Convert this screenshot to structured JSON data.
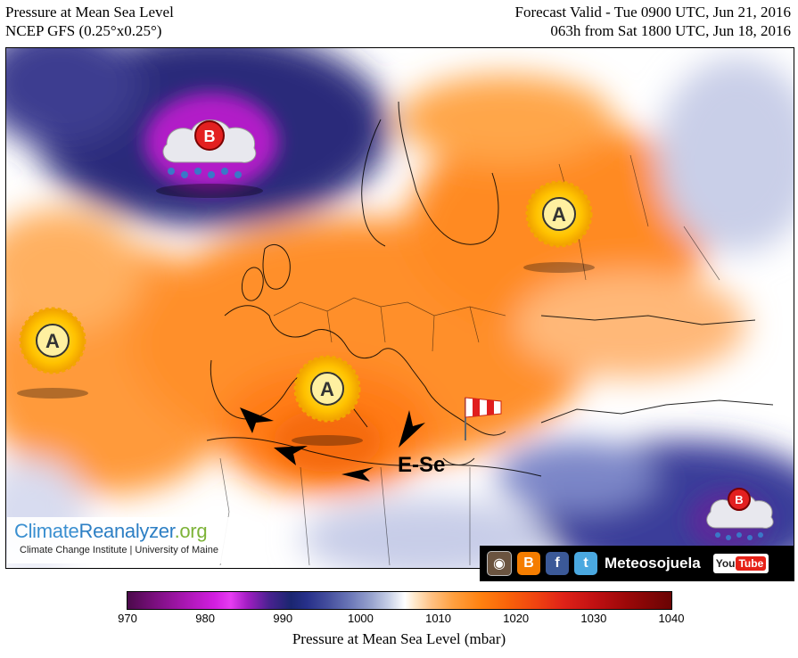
{
  "header": {
    "title": "Pressure at Mean Sea Level",
    "model": "NCEP GFS (0.25°x0.25°)",
    "valid": "Forecast Valid - Tue 0900 UTC, Jun 21, 2016",
    "lead": "063h from Sat 1800 UTC, Jun 18, 2016"
  },
  "map": {
    "pressure_systems": [
      {
        "label": "B",
        "type": "low",
        "location": "north-atlantic-iceland"
      },
      {
        "label": "A",
        "type": "high",
        "location": "western-russia"
      },
      {
        "label": "A",
        "type": "high",
        "location": "atlantic-azores"
      },
      {
        "label": "A",
        "type": "high",
        "location": "western-mediterranean"
      },
      {
        "label": "B",
        "type": "low",
        "location": "middle-east"
      }
    ],
    "wind_annotation": "E-Se",
    "colors": {
      "low": "#7a0f9a",
      "high": "#ff8a1c",
      "neutral": "#ffffff"
    }
  },
  "credit": {
    "title_part1": "Climate",
    "title_part2": "Reanalyzer",
    "title_part3": ".org",
    "subtitle": "Climate Change Institute | University of Maine"
  },
  "social": {
    "icons": [
      "instagram-icon",
      "blogger-icon",
      "facebook-icon",
      "twitter-icon"
    ],
    "name": "Meteosojuela",
    "yt_you": "You",
    "yt_tube": "Tube"
  },
  "colorbar": {
    "ticks": [
      "970",
      "980",
      "990",
      "1000",
      "1010",
      "1020",
      "1030",
      "1040"
    ],
    "label": "Pressure at Mean Sea Level (mbar)",
    "min": 970,
    "max": 1040
  }
}
